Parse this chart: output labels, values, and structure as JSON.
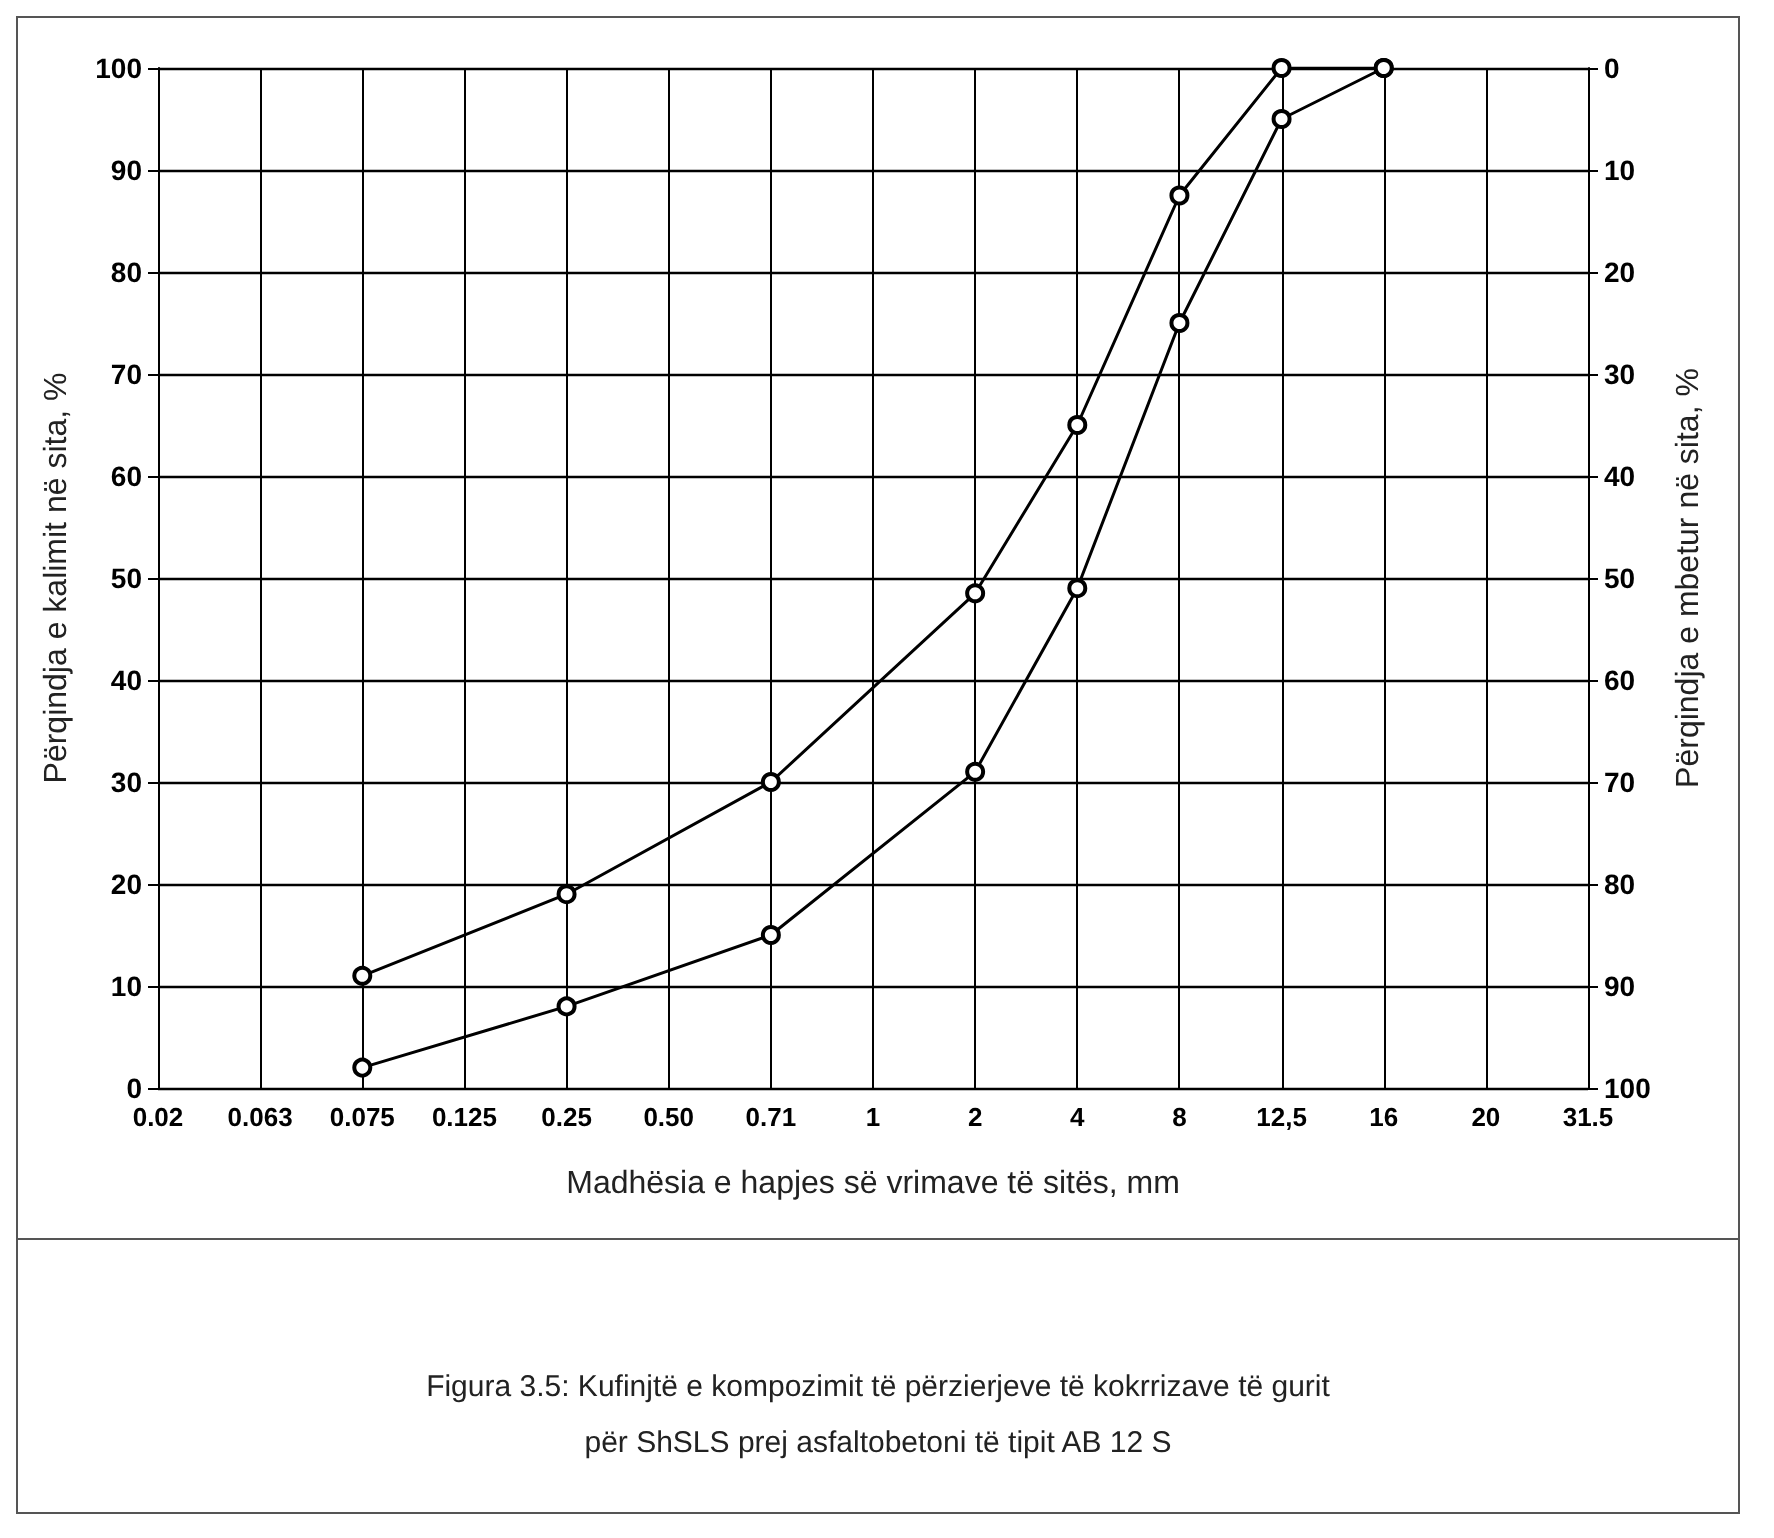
{
  "chart_data": {
    "type": "line",
    "xlabel": "Madhësia e hapjes së vrimave të sitës, mm",
    "ylabel": "Përqindja e kalimit në sita, %",
    "y2label": "Përqindja e mbetur në sita, %",
    "categories": [
      "0.02",
      "0.063",
      "0.075",
      "0.125",
      "0.25",
      "0.50",
      "0.71",
      "1",
      "2",
      "4",
      "8",
      "12,5",
      "16",
      "20",
      "31.5"
    ],
    "series": [
      {
        "color": "#000000",
        "values": [
          null,
          null,
          11,
          null,
          19,
          null,
          30,
          null,
          48.5,
          65,
          87.5,
          100,
          100,
          null,
          null
        ]
      },
      {
        "color": "#000000",
        "values": [
          null,
          null,
          2,
          null,
          8,
          null,
          15,
          null,
          31,
          49,
          75,
          95,
          100,
          null,
          null
        ]
      }
    ],
    "ylim": [
      0,
      100
    ],
    "yticks": [
      0,
      10,
      20,
      30,
      40,
      50,
      60,
      70,
      80,
      90,
      100
    ],
    "y2lim": [
      100,
      0
    ],
    "y2ticks": [
      0,
      10,
      20,
      30,
      40,
      50,
      60,
      70,
      80,
      90,
      100
    ],
    "grid": true,
    "marker": "circle",
    "line_style": "solid",
    "annotations": [
      "Figura 3.5: Kufinjtë e kompozimit të përzierjeve të kokrrizave të gurit",
      "për ShSLS prej asfaltobetoni të tipit AB 12 S"
    ]
  }
}
